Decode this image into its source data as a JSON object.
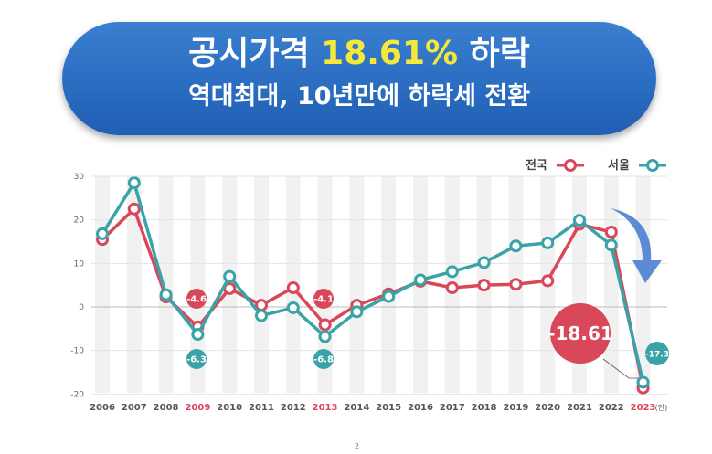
{
  "header": {
    "line1_pre": "공시가격 ",
    "line1_highlight": "18.61%",
    "line1_post": " 하락",
    "line2": "역대최대, 10년만에 하락세 전환"
  },
  "chart_data": {
    "type": "line",
    "categories": [
      "2006",
      "2007",
      "2008",
      "2009",
      "2010",
      "2011",
      "2012",
      "2013",
      "2014",
      "2015",
      "2016",
      "2017",
      "2018",
      "2019",
      "2020",
      "2021",
      "2022",
      "2023"
    ],
    "category_suffix_last": "(안)",
    "highlighted_categories": [
      "2009",
      "2013",
      "2023"
    ],
    "ylim": [
      -20,
      30
    ],
    "yticks": [
      30,
      20,
      10,
      0,
      -10,
      -20
    ],
    "grid": true,
    "legend": "top-right",
    "series": [
      {
        "name": "전국",
        "color": "#d9485a",
        "values": [
          15.5,
          22.5,
          2.3,
          -4.6,
          4.2,
          0.4,
          4.4,
          -4.1,
          0.4,
          3.0,
          5.9,
          4.4,
          5.0,
          5.2,
          6.0,
          19.0,
          17.2,
          -18.61
        ]
      },
      {
        "name": "서울",
        "color": "#3aa3a7",
        "values": [
          16.8,
          28.5,
          2.8,
          -6.3,
          7.0,
          -2.0,
          -0.2,
          -6.8,
          -1.1,
          2.4,
          6.2,
          8.1,
          10.2,
          14.0,
          14.7,
          19.9,
          14.2,
          -17.3
        ]
      }
    ],
    "annotations": [
      {
        "series": 0,
        "index": 3,
        "label": "-4.6"
      },
      {
        "series": 1,
        "index": 3,
        "label": "-6.3"
      },
      {
        "series": 0,
        "index": 7,
        "label": "-4.1"
      },
      {
        "series": 1,
        "index": 7,
        "label": "-6.8"
      },
      {
        "series": 0,
        "index": 17,
        "label": "-18.61"
      },
      {
        "series": 1,
        "index": 17,
        "label": "-17.3"
      }
    ]
  },
  "page_number": "2"
}
